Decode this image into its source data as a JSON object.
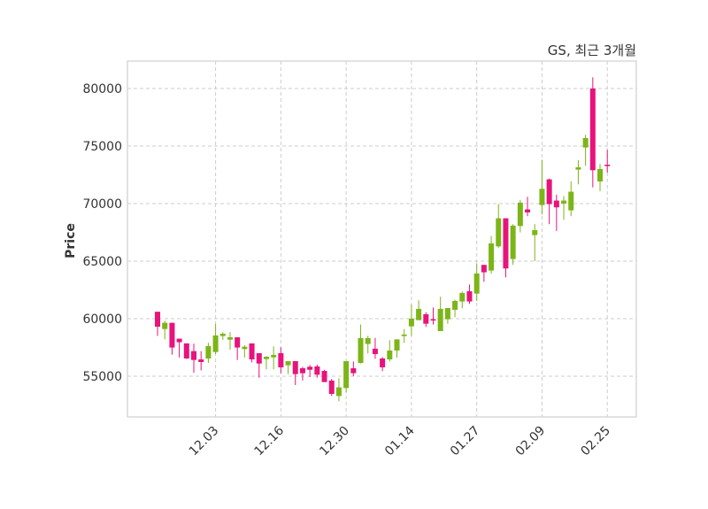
{
  "chart_data": {
    "type": "candlestick",
    "title": "GS, 최근 3개월",
    "xlabel": "",
    "ylabel": "Price",
    "ylim": [
      51460,
      82380
    ],
    "xlim": [
      -4.15,
      66
    ],
    "grid": true,
    "colors": {
      "up": "#7cb518",
      "down": "#e8137b",
      "grid": "#cccccc",
      "frame": "#d9d9d9"
    },
    "yticks": [
      55000,
      60000,
      65000,
      70000,
      75000,
      80000
    ],
    "xticks": [
      {
        "index": 8,
        "label": "12.03"
      },
      {
        "index": 17,
        "label": "12.16"
      },
      {
        "index": 26,
        "label": "12.30"
      },
      {
        "index": 35,
        "label": "01.14"
      },
      {
        "index": 44,
        "label": "01.27"
      },
      {
        "index": 53,
        "label": "02.09"
      },
      {
        "index": 62,
        "label": "02.25"
      }
    ],
    "ohlc": [
      [
        60600,
        60600,
        58500,
        59300
      ],
      [
        59100,
        59820,
        58200,
        59640
      ],
      [
        59640,
        59640,
        56870,
        57490
      ],
      [
        58260,
        58260,
        56620,
        57950
      ],
      [
        57850,
        57850,
        56500,
        56540
      ],
      [
        57180,
        57820,
        55310,
        56410
      ],
      [
        56460,
        57180,
        55510,
        56230
      ],
      [
        56540,
        57900,
        56150,
        57620
      ],
      [
        57100,
        59540,
        56920,
        58540
      ],
      [
        58490,
        58820,
        58150,
        58690
      ],
      [
        58180,
        58820,
        57310,
        58380
      ],
      [
        58380,
        58380,
        56410,
        57490
      ],
      [
        57360,
        57690,
        56620,
        57560
      ],
      [
        57850,
        57850,
        56200,
        56460
      ],
      [
        57000,
        57000,
        54870,
        56100
      ],
      [
        56490,
        56740,
        55590,
        56690
      ],
      [
        56640,
        57590,
        55590,
        56850
      ],
      [
        57000,
        57510,
        55260,
        55770
      ],
      [
        55950,
        56310,
        55180,
        56310
      ],
      [
        56310,
        56310,
        54230,
        55180
      ],
      [
        55690,
        55820,
        54620,
        55260
      ],
      [
        55820,
        55980,
        54920,
        55560
      ],
      [
        55850,
        56000,
        54870,
        55130
      ],
      [
        55460,
        55560,
        54490,
        54490
      ],
      [
        54620,
        54770,
        53280,
        53460
      ],
      [
        53280,
        54820,
        52820,
        54030
      ],
      [
        53970,
        56310,
        53590,
        56310
      ],
      [
        55690,
        56280,
        55000,
        55260
      ],
      [
        56150,
        59490,
        56100,
        58310
      ],
      [
        57800,
        58510,
        56970,
        58310
      ],
      [
        57390,
        58330,
        56510,
        56920
      ],
      [
        56540,
        56670,
        55440,
        55770
      ],
      [
        56460,
        58130,
        56280,
        57230
      ],
      [
        57230,
        58200,
        56610,
        58200
      ],
      [
        58490,
        59100,
        57900,
        58620
      ],
      [
        59330,
        61230,
        58510,
        60000
      ],
      [
        59870,
        61590,
        59870,
        60850
      ],
      [
        60380,
        60560,
        59280,
        59560
      ],
      [
        59950,
        60970,
        59490,
        59900
      ],
      [
        58920,
        61900,
        58920,
        60850
      ],
      [
        59950,
        60920,
        59560,
        60920
      ],
      [
        60770,
        61640,
        60130,
        61540
      ],
      [
        61490,
        62360,
        60900,
        62230
      ],
      [
        62380,
        62970,
        61280,
        61490
      ],
      [
        62180,
        64800,
        61540,
        63920
      ],
      [
        64670,
        64670,
        63200,
        64030
      ],
      [
        64180,
        67180,
        63900,
        66540
      ],
      [
        66280,
        69950,
        66150,
        68720
      ],
      [
        68720,
        68720,
        63590,
        64360
      ],
      [
        65180,
        68210,
        64670,
        68080
      ],
      [
        68050,
        70310,
        67490,
        70080
      ],
      [
        69490,
        70590,
        68900,
        69230
      ],
      [
        67260,
        68210,
        65000,
        67690
      ],
      [
        69870,
        73800,
        69050,
        71280
      ],
      [
        72100,
        72180,
        68210,
        69950
      ],
      [
        70260,
        70770,
        67620,
        69670
      ],
      [
        70000,
        70640,
        68590,
        70260
      ],
      [
        69410,
        71920,
        68900,
        71030
      ],
      [
        72950,
        73770,
        71670,
        73150
      ],
      [
        74870,
        75970,
        73280,
        75690
      ],
      [
        80000,
        80970,
        71410,
        72900
      ],
      [
        71920,
        73440,
        71080,
        73000
      ],
      [
        73380,
        74670,
        72690,
        73260
      ]
    ]
  }
}
